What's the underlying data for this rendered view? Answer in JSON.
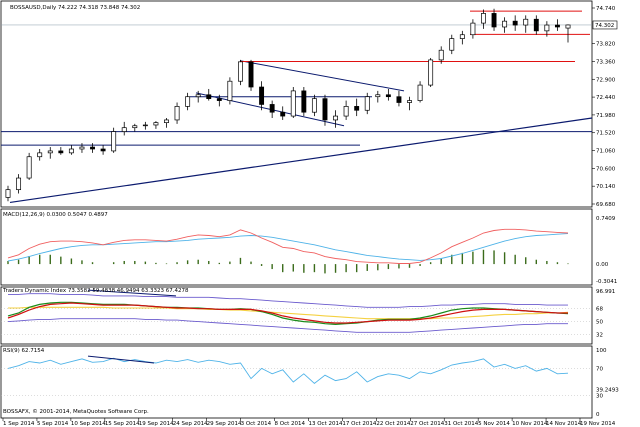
{
  "main": {
    "title": "BOSSAUSD,Daily  74.222 74.318 73.848 74.302",
    "y_labels": [
      "74.740",
      "74.302",
      "73.820",
      "73.360",
      "72.900",
      "72.440",
      "71.980",
      "71.520",
      "71.060",
      "70.600",
      "70.140",
      "69.680"
    ],
    "price_tag": "74.302",
    "copyright": "BOSSAFX, © 2001-2014, MetaQuotes Software Corp."
  },
  "macd": {
    "title": "MACD(12,26,9) 0.0300 0.5047 0.4897",
    "y_labels": [
      "0.7409",
      "0.00",
      "-0.3041"
    ]
  },
  "tdi": {
    "title": "Traders Dynamic Index 73.3582 59.4838 46.9494 63.3323 67.4278",
    "y_labels": [
      "96.991",
      "68",
      "50",
      "32"
    ]
  },
  "rsi": {
    "title": "RSI(9) 62.7154",
    "y_labels": [
      "100",
      "70",
      "30",
      "39.2493",
      "0"
    ]
  },
  "x_labels": [
    "1 Sep 2014",
    "5 Sep 2014",
    "10 Sep 2014",
    "15 Sep 2014",
    "19 Sep 2014",
    "24 Sep 2014",
    "29 Sep 2014",
    "3 Oct 2014",
    "8 Oct 2014",
    "13 Oct 2014",
    "17 Oct 2014",
    "22 Oct 2014",
    "27 Oct 2014",
    "31 Oct 2014",
    "5 Nov 2014",
    "10 Nov 2014",
    "14 Nov 2014",
    "19 Nov 2014"
  ],
  "chart_data": [
    {
      "type": "candlestick",
      "title": "BOSSAUSD,Daily  74.222 74.318 73.848 74.302",
      "ylim": [
        69.68,
        74.74
      ],
      "candles": [
        {
          "o": 69.85,
          "h": 70.15,
          "l": 69.75,
          "c": 70.05
        },
        {
          "o": 70.05,
          "h": 70.45,
          "l": 69.95,
          "c": 70.35
        },
        {
          "o": 70.35,
          "h": 71.0,
          "l": 70.3,
          "c": 70.9
        },
        {
          "o": 70.9,
          "h": 71.1,
          "l": 70.8,
          "c": 71.0
        },
        {
          "o": 71.0,
          "h": 71.15,
          "l": 70.85,
          "c": 71.05
        },
        {
          "o": 71.05,
          "h": 71.15,
          "l": 70.95,
          "c": 71.0
        },
        {
          "o": 71.0,
          "h": 71.2,
          "l": 70.95,
          "c": 71.1
        },
        {
          "o": 71.1,
          "h": 71.25,
          "l": 71.0,
          "c": 71.15
        },
        {
          "o": 71.15,
          "h": 71.25,
          "l": 71.0,
          "c": 71.1
        },
        {
          "o": 71.1,
          "h": 71.2,
          "l": 70.95,
          "c": 71.05
        },
        {
          "o": 71.05,
          "h": 71.65,
          "l": 71.0,
          "c": 71.55
        },
        {
          "o": 71.55,
          "h": 71.8,
          "l": 71.45,
          "c": 71.65
        },
        {
          "o": 71.65,
          "h": 71.75,
          "l": 71.55,
          "c": 71.7
        },
        {
          "o": 71.7,
          "h": 71.8,
          "l": 71.6,
          "c": 71.72
        },
        {
          "o": 71.72,
          "h": 71.82,
          "l": 71.62,
          "c": 71.78
        },
        {
          "o": 71.78,
          "h": 71.9,
          "l": 71.65,
          "c": 71.85
        },
        {
          "o": 71.85,
          "h": 72.3,
          "l": 71.75,
          "c": 72.2
        },
        {
          "o": 72.2,
          "h": 72.55,
          "l": 72.1,
          "c": 72.45
        },
        {
          "o": 72.45,
          "h": 72.6,
          "l": 72.3,
          "c": 72.5
        },
        {
          "o": 72.5,
          "h": 72.65,
          "l": 72.35,
          "c": 72.4
        },
        {
          "o": 72.4,
          "h": 72.5,
          "l": 72.2,
          "c": 72.35
        },
        {
          "o": 72.35,
          "h": 72.95,
          "l": 72.25,
          "c": 72.85
        },
        {
          "o": 72.85,
          "h": 73.4,
          "l": 72.75,
          "c": 73.35
        },
        {
          "o": 73.35,
          "h": 73.4,
          "l": 72.6,
          "c": 72.7
        },
        {
          "o": 72.7,
          "h": 72.85,
          "l": 72.1,
          "c": 72.25
        },
        {
          "o": 72.25,
          "h": 72.35,
          "l": 71.9,
          "c": 72.05
        },
        {
          "o": 72.05,
          "h": 72.2,
          "l": 71.85,
          "c": 71.95
        },
        {
          "o": 71.95,
          "h": 72.7,
          "l": 71.9,
          "c": 72.6
        },
        {
          "o": 72.6,
          "h": 72.7,
          "l": 71.95,
          "c": 72.05
        },
        {
          "o": 72.05,
          "h": 72.5,
          "l": 71.95,
          "c": 72.4
        },
        {
          "o": 72.4,
          "h": 72.5,
          "l": 71.7,
          "c": 71.85
        },
        {
          "o": 71.85,
          "h": 72.1,
          "l": 71.65,
          "c": 71.95
        },
        {
          "o": 71.95,
          "h": 72.35,
          "l": 71.85,
          "c": 72.2
        },
        {
          "o": 72.2,
          "h": 72.4,
          "l": 71.95,
          "c": 72.1
        },
        {
          "o": 72.1,
          "h": 72.55,
          "l": 72.0,
          "c": 72.45
        },
        {
          "o": 72.45,
          "h": 72.6,
          "l": 72.3,
          "c": 72.5
        },
        {
          "o": 72.5,
          "h": 72.65,
          "l": 72.35,
          "c": 72.45
        },
        {
          "o": 72.45,
          "h": 72.6,
          "l": 72.2,
          "c": 72.3
        },
        {
          "o": 72.3,
          "h": 72.45,
          "l": 72.1,
          "c": 72.35
        },
        {
          "o": 72.35,
          "h": 72.85,
          "l": 72.3,
          "c": 72.75
        },
        {
          "o": 72.75,
          "h": 73.45,
          "l": 72.7,
          "c": 73.4
        },
        {
          "o": 73.4,
          "h": 73.75,
          "l": 73.3,
          "c": 73.65
        },
        {
          "o": 73.65,
          "h": 74.05,
          "l": 73.55,
          "c": 73.95
        },
        {
          "o": 73.95,
          "h": 74.15,
          "l": 73.8,
          "c": 74.05
        },
        {
          "o": 74.05,
          "h": 74.45,
          "l": 73.95,
          "c": 74.35
        },
        {
          "o": 74.35,
          "h": 74.7,
          "l": 74.2,
          "c": 74.6
        },
        {
          "o": 74.6,
          "h": 74.72,
          "l": 74.15,
          "c": 74.25
        },
        {
          "o": 74.25,
          "h": 74.5,
          "l": 74.1,
          "c": 74.4
        },
        {
          "o": 74.4,
          "h": 74.55,
          "l": 74.15,
          "c": 74.3
        },
        {
          "o": 74.3,
          "h": 74.55,
          "l": 74.1,
          "c": 74.45
        },
        {
          "o": 74.45,
          "h": 74.55,
          "l": 74.05,
          "c": 74.15
        },
        {
          "o": 74.15,
          "h": 74.4,
          "l": 74.0,
          "c": 74.3
        },
        {
          "o": 74.3,
          "h": 74.45,
          "l": 74.15,
          "c": 74.25
        },
        {
          "o": 74.222,
          "h": 74.318,
          "l": 73.848,
          "c": 74.302
        }
      ]
    },
    {
      "type": "line",
      "title": "MACD(12,26,9) 0.0300 0.5047 0.4897",
      "ylim": [
        -0.3041,
        0.7409
      ],
      "main_line": [
        0.1,
        0.15,
        0.25,
        0.32,
        0.36,
        0.37,
        0.37,
        0.36,
        0.34,
        0.31,
        0.35,
        0.38,
        0.39,
        0.39,
        0.38,
        0.37,
        0.4,
        0.44,
        0.47,
        0.46,
        0.44,
        0.47,
        0.55,
        0.5,
        0.42,
        0.35,
        0.27,
        0.25,
        0.2,
        0.18,
        0.12,
        0.09,
        0.07,
        0.04,
        0.03,
        0.02,
        0.02,
        0.01,
        0.01,
        0.03,
        0.1,
        0.18,
        0.28,
        0.35,
        0.42,
        0.5,
        0.54,
        0.56,
        0.56,
        0.55,
        0.53,
        0.52,
        0.51,
        0.5
      ],
      "signal_line": [
        0.05,
        0.08,
        0.12,
        0.17,
        0.21,
        0.25,
        0.28,
        0.3,
        0.31,
        0.31,
        0.32,
        0.33,
        0.34,
        0.35,
        0.36,
        0.36,
        0.37,
        0.38,
        0.4,
        0.41,
        0.42,
        0.43,
        0.45,
        0.46,
        0.45,
        0.43,
        0.4,
        0.37,
        0.34,
        0.31,
        0.27,
        0.23,
        0.2,
        0.17,
        0.14,
        0.12,
        0.1,
        0.08,
        0.07,
        0.06,
        0.07,
        0.09,
        0.13,
        0.17,
        0.22,
        0.27,
        0.32,
        0.37,
        0.41,
        0.44,
        0.46,
        0.47,
        0.48,
        0.49
      ],
      "histogram": [
        0.05,
        0.07,
        0.13,
        0.15,
        0.15,
        0.12,
        0.09,
        0.06,
        0.03,
        0.0,
        0.03,
        0.05,
        0.05,
        0.04,
        0.02,
        0.01,
        0.03,
        0.06,
        0.07,
        0.05,
        0.02,
        0.04,
        0.1,
        0.04,
        -0.03,
        -0.08,
        -0.13,
        -0.12,
        -0.14,
        -0.13,
        -0.15,
        -0.14,
        -0.13,
        -0.13,
        -0.11,
        -0.1,
        -0.08,
        -0.07,
        -0.06,
        -0.03,
        0.03,
        0.09,
        0.15,
        0.18,
        0.2,
        0.23,
        0.22,
        0.19,
        0.15,
        0.11,
        0.07,
        0.05,
        0.03,
        0.01
      ]
    },
    {
      "type": "line",
      "title": "Traders Dynamic Index 73.3582 59.4838 46.9494 63.3323 67.4278",
      "ylim": [
        20,
        96.991
      ],
      "upper_band": [
        88,
        88,
        89,
        89,
        89,
        88,
        88,
        88,
        87,
        86,
        86,
        86,
        86,
        85,
        85,
        85,
        84,
        84,
        84,
        84,
        83,
        82,
        82,
        81,
        80,
        79,
        78,
        77,
        76,
        75,
        74,
        73,
        72,
        71,
        70,
        70,
        70,
        70,
        71,
        71,
        72,
        73,
        73,
        74,
        74,
        75,
        75,
        75,
        74,
        74,
        74,
        73,
        73,
        73
      ],
      "lower_band": [
        50,
        51,
        52,
        53,
        53,
        54,
        54,
        54,
        54,
        54,
        54,
        54,
        54,
        53,
        53,
        52,
        52,
        51,
        50,
        49,
        48,
        47,
        46,
        45,
        44,
        43,
        42,
        41,
        40,
        39,
        38,
        37,
        36,
        35,
        35,
        35,
        35,
        35,
        35,
        36,
        37,
        38,
        39,
        40,
        41,
        42,
        43,
        44,
        45,
        46,
        46,
        47,
        47,
        47
      ],
      "market_base": [
        69,
        69,
        70,
        70,
        70,
        70,
        70,
        70,
        70,
        70,
        69,
        69,
        69,
        69,
        69,
        69,
        68,
        68,
        68,
        67,
        67,
        66,
        66,
        65,
        64,
        63,
        62,
        61,
        60,
        59,
        58,
        57,
        56,
        55,
        54,
        54,
        54,
        54,
        54,
        54,
        54,
        55,
        55,
        56,
        57,
        58,
        59,
        60,
        60,
        61,
        61,
        62,
        62,
        63
      ],
      "rsi_price": [
        58,
        62,
        70,
        74,
        76,
        77,
        77,
        76,
        75,
        74,
        74,
        74,
        73,
        72,
        71,
        70,
        70,
        69,
        69,
        68,
        67,
        67,
        68,
        67,
        64,
        60,
        55,
        52,
        50,
        49,
        47,
        46,
        47,
        48,
        50,
        52,
        53,
        53,
        53,
        55,
        58,
        62,
        66,
        68,
        69,
        69,
        68,
        67,
        66,
        65,
        64,
        63,
        62,
        61
      ],
      "trade_signal": [
        55,
        60,
        66,
        71,
        74,
        75,
        76,
        75,
        74,
        73,
        73,
        73,
        73,
        72,
        71,
        70,
        69,
        69,
        68,
        68,
        67,
        67,
        67,
        67,
        65,
        62,
        58,
        55,
        53,
        51,
        49,
        48,
        48,
        49,
        50,
        51,
        52,
        52,
        52,
        53,
        55,
        58,
        61,
        64,
        66,
        67,
        67,
        67,
        66,
        65,
        64,
        63,
        62,
        62
      ],
      "levels": [
        68,
        50,
        32
      ]
    },
    {
      "type": "line",
      "title": "RSI(9) 62.7154",
      "ylim": [
        0,
        100
      ],
      "values": [
        70,
        74,
        80,
        78,
        82,
        76,
        80,
        84,
        79,
        80,
        85,
        80,
        83,
        80,
        78,
        82,
        80,
        83,
        79,
        82,
        80,
        76,
        78,
        55,
        70,
        62,
        68,
        50,
        62,
        48,
        60,
        52,
        55,
        65,
        50,
        58,
        62,
        60,
        55,
        65,
        62,
        68,
        75,
        78,
        80,
        84,
        72,
        76,
        70,
        74,
        66,
        70,
        62,
        63
      ],
      "levels": [
        70,
        30
      ]
    }
  ]
}
